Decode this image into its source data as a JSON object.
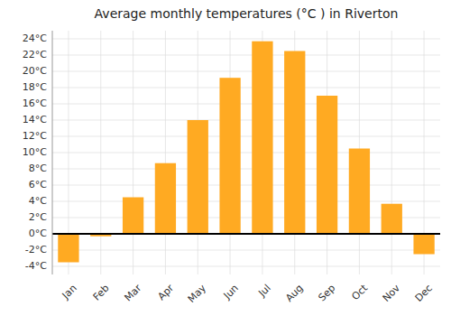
{
  "chart_data": {
    "type": "bar",
    "title": "Average monthly temperatures (°C ) in Riverton",
    "categories": [
      "Jan",
      "Feb",
      "Mar",
      "Apr",
      "May",
      "Jun",
      "Jul",
      "Aug",
      "Sep",
      "Oct",
      "Nov",
      "Dec"
    ],
    "values": [
      -3.5,
      -0.3,
      4.5,
      8.7,
      14.0,
      19.2,
      23.7,
      22.5,
      17.0,
      10.5,
      3.7,
      -2.5
    ],
    "color": "#FFAA22",
    "ylim": [
      -5,
      25
    ],
    "yticks": [
      {
        "value": -4,
        "label": "-4°C"
      },
      {
        "value": -2,
        "label": "-2°C"
      },
      {
        "value": 0,
        "label": "0°C"
      },
      {
        "value": 2,
        "label": "2°C"
      },
      {
        "value": 4,
        "label": "4°C"
      },
      {
        "value": 6,
        "label": "6°C"
      },
      {
        "value": 8,
        "label": "8°C"
      },
      {
        "value": 10,
        "label": "10°C"
      },
      {
        "value": 12,
        "label": "12°C"
      },
      {
        "value": 14,
        "label": "14°C"
      },
      {
        "value": 16,
        "label": "16°C"
      },
      {
        "value": 18,
        "label": "18°C"
      },
      {
        "value": 20,
        "label": "20°C"
      },
      {
        "value": 22,
        "label": "22°C"
      },
      {
        "value": 24,
        "label": "24°C"
      }
    ],
    "grid": true
  }
}
